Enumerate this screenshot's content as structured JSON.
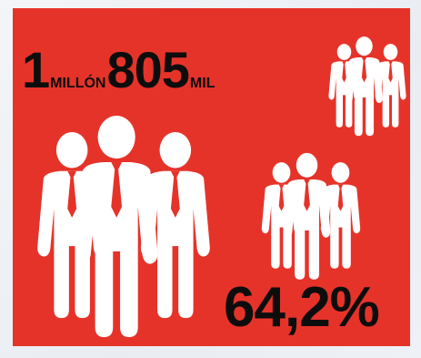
{
  "headline": {
    "millon_number": "1",
    "millon_label": "MILLÓN",
    "mil_number": "805",
    "mil_label": "MIL"
  },
  "percentage": "64,2%",
  "icons": {
    "group": "people-group-icon"
  },
  "colors": {
    "panel": "#e63329",
    "text": "#0d0d0d",
    "figure": "#ffffff",
    "tie": "#e63329"
  }
}
